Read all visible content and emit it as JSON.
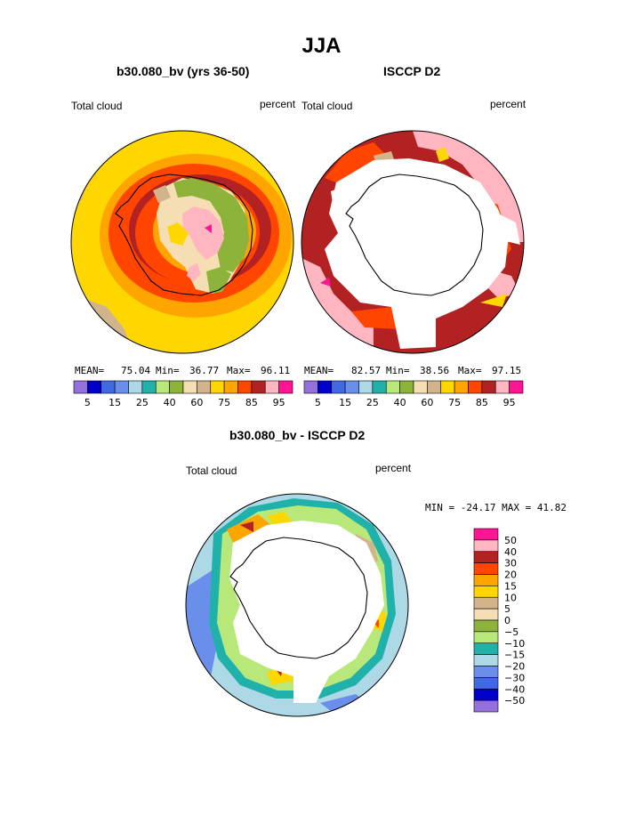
{
  "page_title": "JJA",
  "chart_data": [
    {
      "type": "heatmap",
      "projection": "south-polar-stereographic",
      "title": "b30.080_bv (yrs 36-50)",
      "left_label": "Total cloud",
      "right_label": "percent",
      "stats": {
        "mean_label": "MEAN=",
        "mean": "75.04",
        "min_label": "Min=",
        "min": "36.77",
        "max_label": "Max=",
        "max": "96.11"
      },
      "colorbar_levels": [
        5,
        10,
        15,
        20,
        25,
        30,
        40,
        50,
        60,
        70,
        75,
        80,
        85,
        90,
        95
      ],
      "colorbar_tick_labels": [
        "5",
        "15",
        "25",
        "40",
        "60",
        "75",
        "85",
        "95"
      ],
      "colorbar_colors": [
        "#9370DB",
        "#0000CD",
        "#4169E1",
        "#6A8FEA",
        "#ADD8E6",
        "#20B2AA",
        "#B8E87A",
        "#8DB33B",
        "#F5DEB3",
        "#D2B48C",
        "#FFD700",
        "#FFA500",
        "#FF4500",
        "#B22222",
        "#FFB6C1",
        "#FF1493"
      ]
    },
    {
      "type": "heatmap",
      "projection": "south-polar-stereographic",
      "title": "ISCCP D2",
      "left_label": "Total cloud",
      "right_label": "percent",
      "stats": {
        "mean_label": "MEAN=",
        "mean": "82.57",
        "min_label": "Min=",
        "min": "38.56",
        "max_label": "Max=",
        "max": "97.15"
      },
      "colorbar_levels": [
        5,
        10,
        15,
        20,
        25,
        30,
        40,
        50,
        60,
        70,
        75,
        80,
        85,
        90,
        95
      ],
      "colorbar_tick_labels": [
        "5",
        "15",
        "25",
        "40",
        "60",
        "75",
        "85",
        "95"
      ],
      "colorbar_colors": [
        "#9370DB",
        "#0000CD",
        "#4169E1",
        "#6A8FEA",
        "#ADD8E6",
        "#20B2AA",
        "#B8E87A",
        "#8DB33B",
        "#F5DEB3",
        "#D2B48C",
        "#FFD700",
        "#FFA500",
        "#FF4500",
        "#B22222",
        "#FFB6C1",
        "#FF1493"
      ]
    },
    {
      "type": "heatmap",
      "projection": "south-polar-stereographic",
      "title": "b30.080_bv - ISCCP D2",
      "left_label": "Total cloud",
      "right_label": "percent",
      "stats_text": "MIN = -24.17 MAX =  41.82",
      "colorbar_tick_labels": [
        "50",
        "40",
        "30",
        "20",
        "15",
        "10",
        "5",
        "0",
        "−5",
        "−10",
        "−15",
        "−20",
        "−30",
        "−40",
        "−50"
      ],
      "colorbar_colors": [
        "#FF1493",
        "#FFB6C1",
        "#B22222",
        "#FF4500",
        "#FFA500",
        "#FFD700",
        "#D2B48C",
        "#F5DEB3",
        "#8DB33B",
        "#B8E87A",
        "#20B2AA",
        "#ADD8E6",
        "#6A8FEA",
        "#4169E1",
        "#0000CD",
        "#9370DB"
      ]
    }
  ]
}
